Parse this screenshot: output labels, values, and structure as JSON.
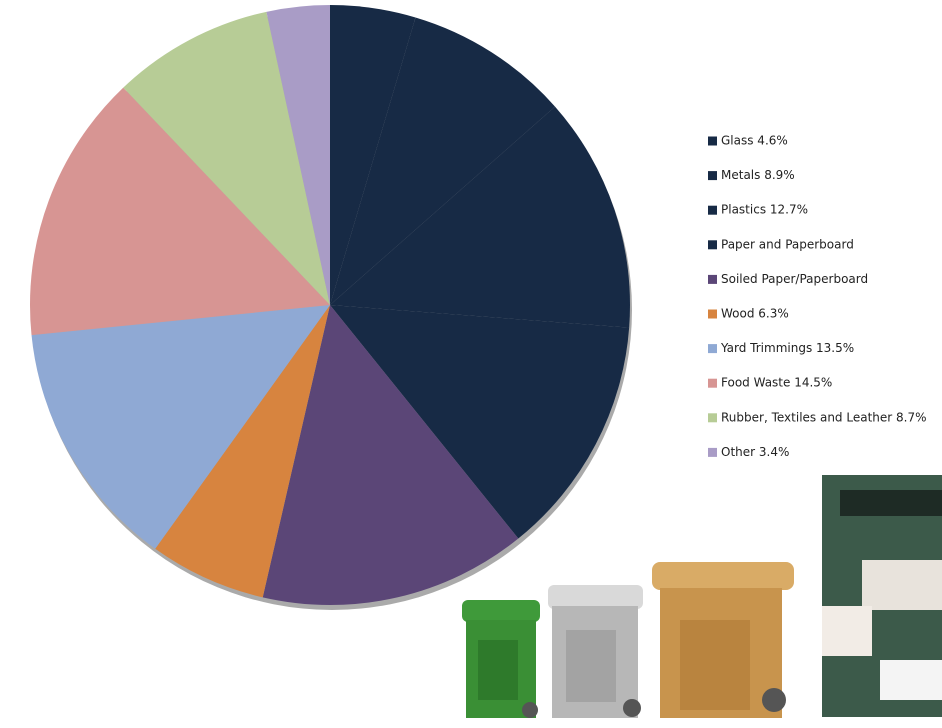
{
  "chart_data": {
    "type": "pie",
    "categories": [
      "Glass 4.6%",
      "Metals 8.9%",
      "Plastics 12.7%",
      "Paper and Paperboard",
      "Soiled Paper/Paperboard",
      "Wood 6.3%",
      "Yard Trimmings 13.5%",
      "Food Waste 14.5%",
      "Rubber, Textiles and Leather 8.7%",
      "Other 3.4%"
    ],
    "values": [
      4.6,
      8.9,
      12.7,
      13.0,
      14.4,
      6.3,
      13.5,
      14.5,
      8.7,
      3.4
    ],
    "colors": [
      "#172a45",
      "#172a45",
      "#172a45",
      "#172a45",
      "#5b4677",
      "#d7843f",
      "#8fa9d4",
      "#d79593",
      "#b7cc96",
      "#a99cc6"
    ]
  }
}
